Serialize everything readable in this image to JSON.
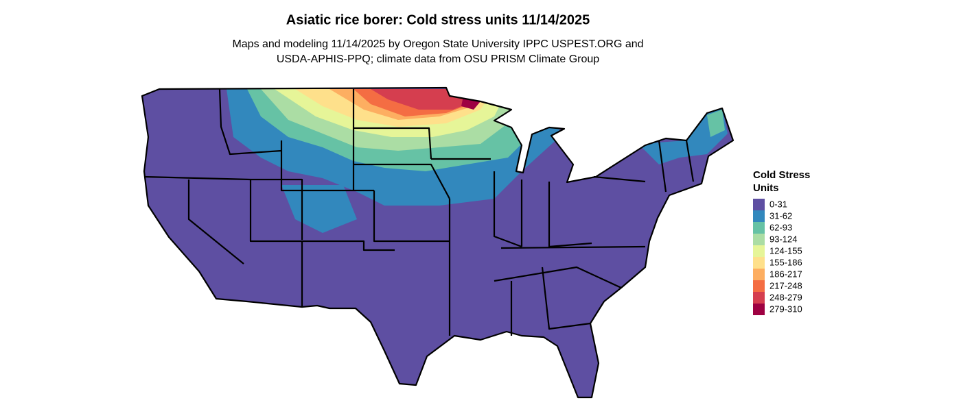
{
  "title": "Asiatic rice borer: Cold stress units 11/14/2025",
  "subtitle": [
    "Maps and modeling 11/14/2025 by Oregon State University IPPC USPEST.ORG and",
    "USDA-APHIS-PPQ; climate data from OSU PRISM Climate Group"
  ],
  "legend": {
    "title": [
      "Cold Stress",
      "Units"
    ],
    "items": [
      {
        "label": "0-31",
        "color": "#5e4fa2"
      },
      {
        "label": "31-62",
        "color": "#3288bd"
      },
      {
        "label": "62-93",
        "color": "#66c2a5"
      },
      {
        "label": "93-124",
        "color": "#abdda4"
      },
      {
        "label": "124-155",
        "color": "#e6f598"
      },
      {
        "label": "155-186",
        "color": "#fee08b"
      },
      {
        "label": "186-217",
        "color": "#fdae61"
      },
      {
        "label": "217-248",
        "color": "#f46d43"
      },
      {
        "label": "248-279",
        "color": "#d53e4f"
      },
      {
        "label": "279-310",
        "color": "#9e0142"
      }
    ]
  }
}
